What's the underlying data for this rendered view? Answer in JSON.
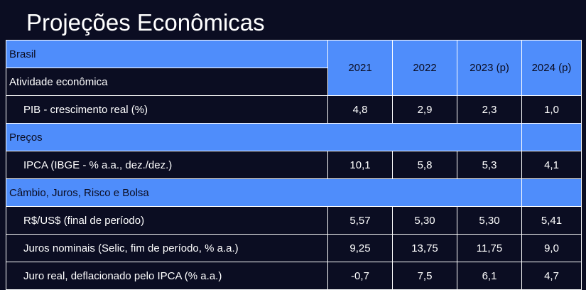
{
  "title": "Projeções Econômicas",
  "header": {
    "brasil": "Brasil",
    "atividade": "Atividade econômica",
    "years": [
      "2021",
      "2022",
      "2023 (p)",
      "2024 (p)"
    ]
  },
  "rows": {
    "pib": {
      "label": "PIB - crescimento real (%)",
      "values": [
        "4,8",
        "2,9",
        "2,3",
        "1,0"
      ]
    },
    "precos": "Preços",
    "ipca": {
      "label": "IPCA (IBGE - % a.a., dez./dez.)",
      "values": [
        "10,1",
        "5,8",
        "5,3",
        "4,1"
      ]
    },
    "cambio": "Câmbio, Juros, Risco e Bolsa",
    "rs": {
      "label": "R$/US$ (final de período)",
      "values": [
        "5,57",
        "5,30",
        "5,30",
        "5,41"
      ]
    },
    "juros_nom": {
      "label": "Juros nominais (Selic, fim de período, % a.a.)",
      "values": [
        "9,25",
        "13,75",
        "11,75",
        "9,0"
      ]
    },
    "juro_real": {
      "label": "Juro real, deflacionado pelo IPCA (% a.a.)",
      "values": [
        "-0,7",
        "7,5",
        "6,1",
        "4,7"
      ]
    }
  },
  "colors": {
    "accent": "#4f8dfb",
    "background": "#0b0d22",
    "text": "#ffffff"
  }
}
